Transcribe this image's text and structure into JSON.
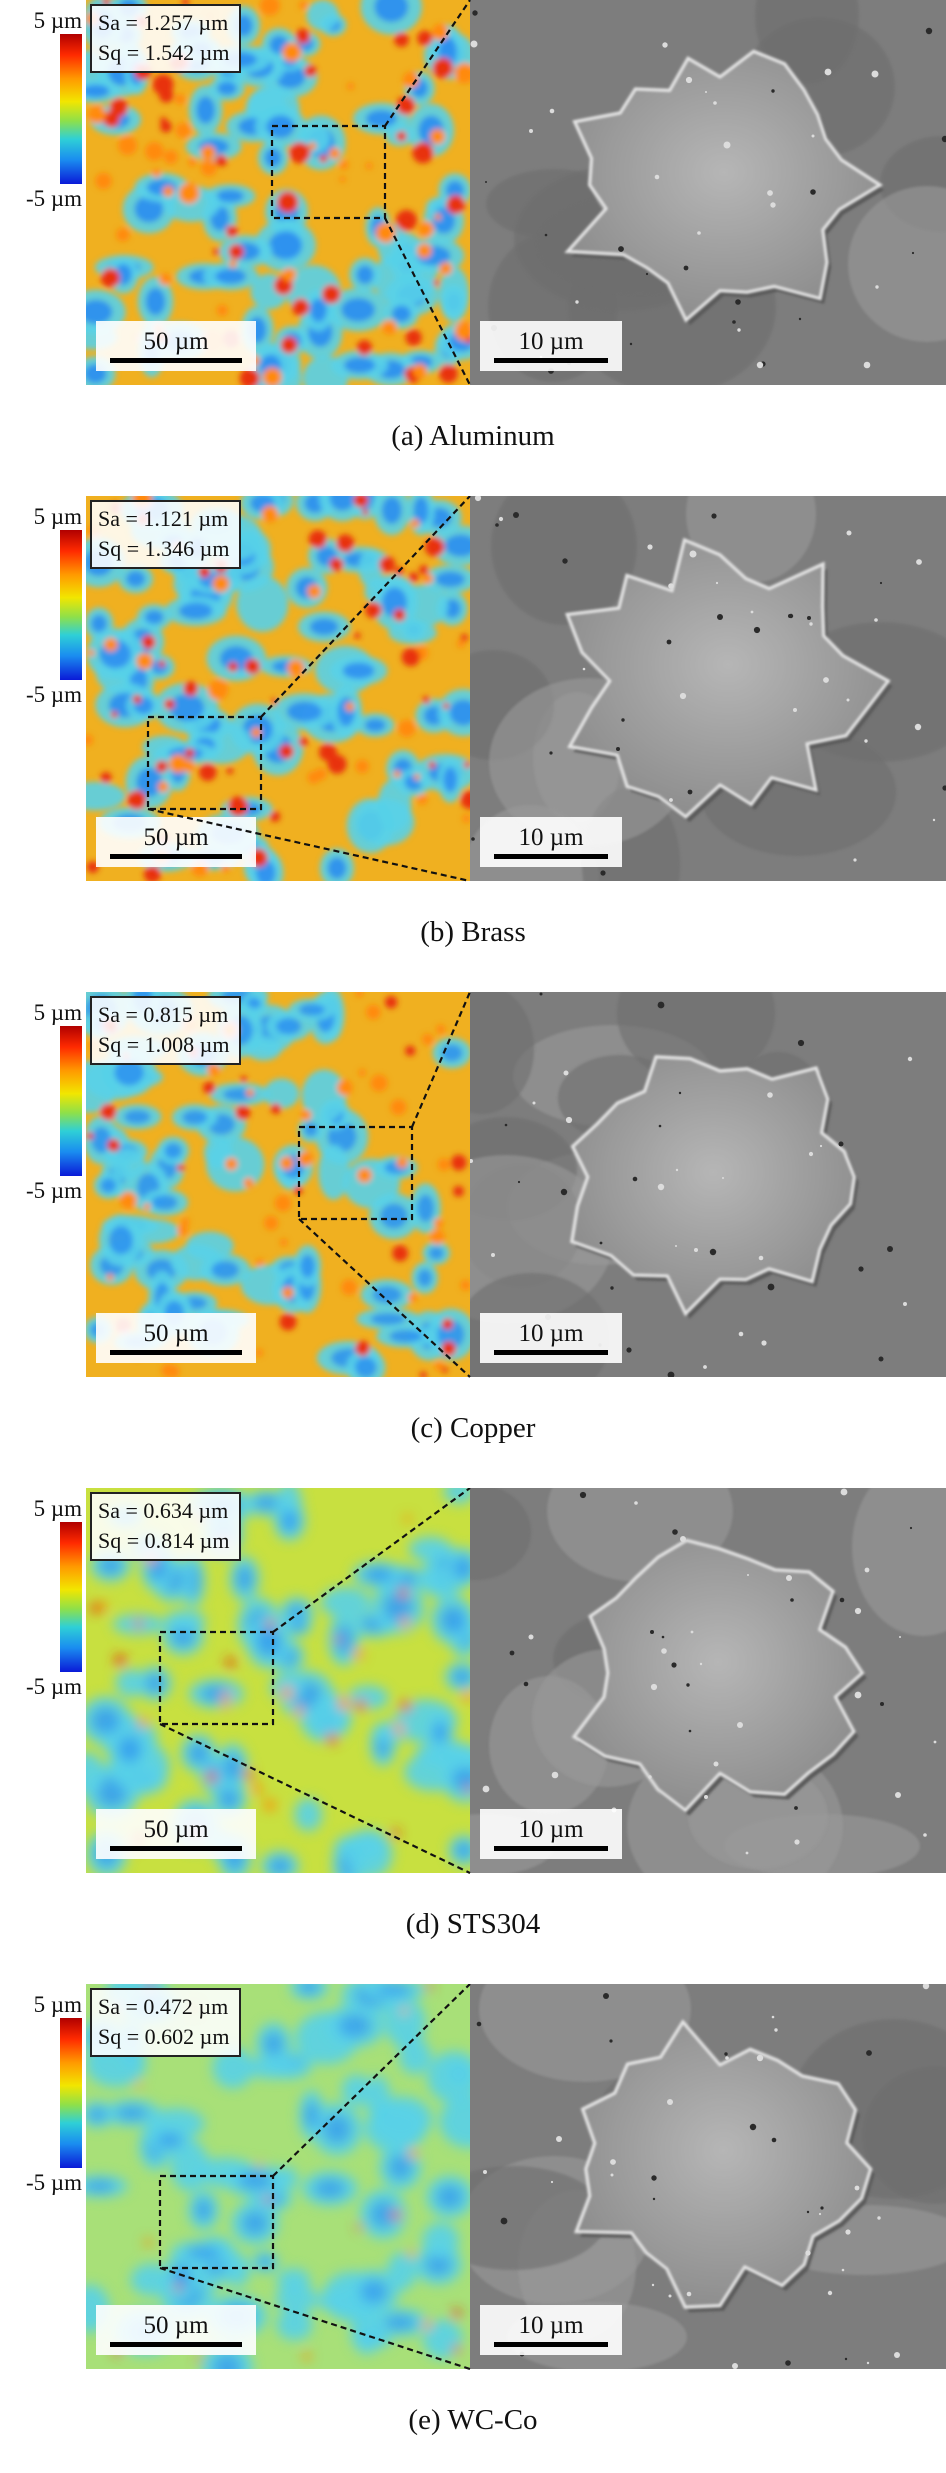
{
  "colorbar": {
    "max_label": "5 µm",
    "min_label": "-5 µm"
  },
  "height_map_scale_label": "50 µm",
  "sem_scale_label": "10 µm",
  "panels": [
    {
      "caption": "(a) Aluminum",
      "sa": "Sa = 1.257 µm",
      "sq": "Sq = 1.542 µm"
    },
    {
      "caption": "(b) Brass",
      "sa": "Sa = 1.121 µm",
      "sq": "Sq = 1.346 µm"
    },
    {
      "caption": "(c) Copper",
      "sa": "Sa = 0.815 µm",
      "sq": "Sq = 1.008 µm"
    },
    {
      "caption": "(d) STS304",
      "sa": "Sa = 0.634 µm",
      "sq": "Sq = 0.814 µm"
    },
    {
      "caption": "(e) WC-Co",
      "sa": "Sa = 0.472 µm",
      "sq": "Sq = 0.602 µm"
    }
  ]
}
